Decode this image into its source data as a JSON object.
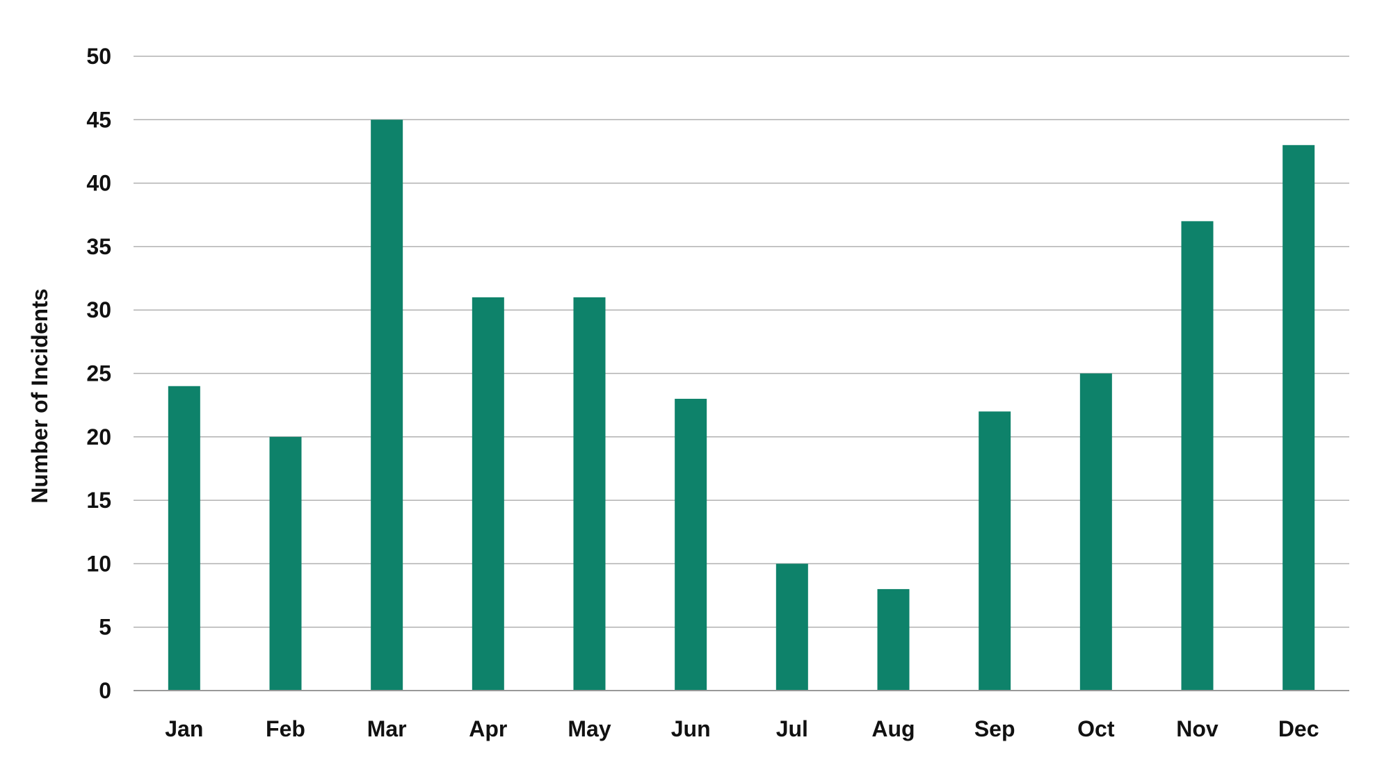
{
  "chart_data": {
    "type": "bar",
    "title": "",
    "xlabel": "",
    "ylabel": "Number of Incidents",
    "categories": [
      "Jan",
      "Feb",
      "Mar",
      "Apr",
      "May",
      "Jun",
      "Jul",
      "Aug",
      "Sep",
      "Oct",
      "Nov",
      "Dec"
    ],
    "values": [
      24,
      20,
      45,
      31,
      31,
      23,
      10,
      8,
      22,
      25,
      37,
      43
    ],
    "ylim": [
      0,
      50
    ],
    "yticks": [
      0,
      5,
      10,
      15,
      20,
      25,
      30,
      35,
      40,
      45,
      50
    ],
    "grid": true,
    "legend": "none",
    "colors": {
      "bar": "#0E826A",
      "grid": "#B0B0B0",
      "axis": "#999999",
      "text": "#111111"
    }
  }
}
